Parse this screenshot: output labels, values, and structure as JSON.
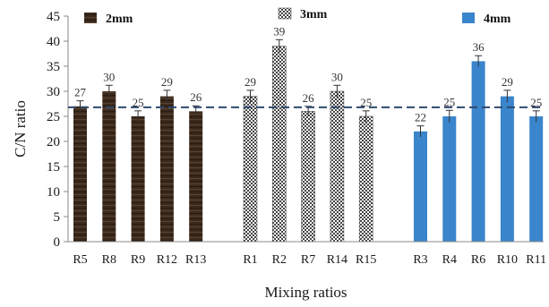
{
  "chart_data": {
    "type": "bar",
    "xlabel": "Mixing ratios",
    "ylabel": "C/N ratio",
    "ylim": [
      0,
      45
    ],
    "yticks": [
      0,
      5,
      10,
      15,
      20,
      25,
      30,
      35,
      40,
      45
    ],
    "grid": false,
    "reference_line": 26.8,
    "series": [
      {
        "name": "2mm",
        "color": "#3b2a1d",
        "pattern": "wood",
        "categories": [
          "R5",
          "R8",
          "R9",
          "R12",
          "R13"
        ],
        "values": [
          27,
          30,
          25,
          29,
          26
        ],
        "errors": [
          1.1,
          1.2,
          1.1,
          1.2,
          1.1
        ]
      },
      {
        "name": "3mm",
        "color": "#444444",
        "pattern": "checker",
        "categories": [
          "R1",
          "R2",
          "R7",
          "R14",
          "R15"
        ],
        "values": [
          29,
          39,
          26,
          30,
          25
        ],
        "errors": [
          1.2,
          1.3,
          1.0,
          1.2,
          1.1
        ]
      },
      {
        "name": "4mm",
        "color": "#3a85cc",
        "pattern": "solid",
        "categories": [
          "R3",
          "R4",
          "R6",
          "R10",
          "R11"
        ],
        "values": [
          22,
          25,
          36,
          29,
          25
        ],
        "errors": [
          1.1,
          1.2,
          1.1,
          1.2,
          1.1
        ]
      }
    ]
  }
}
